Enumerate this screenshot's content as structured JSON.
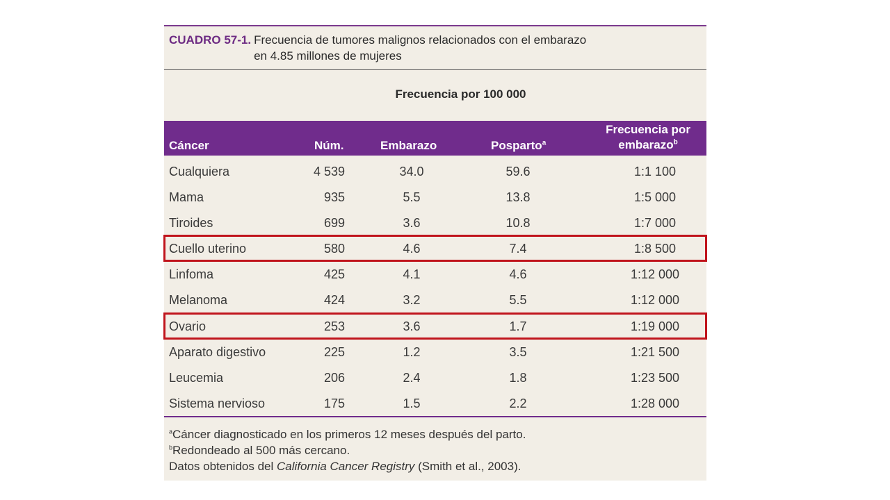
{
  "caption": {
    "label": "CUADRO 57-1.",
    "line1": "Frecuencia de tumores malignos relacionados con el embarazo",
    "line2": "en 4.85 millones de mujeres"
  },
  "group_header": "Frecuencia  por 100 000",
  "columns": {
    "cancer": "Cáncer",
    "num": "Núm.",
    "embarazo": "Embarazo",
    "posparto": "Posparto",
    "posparto_sup": "a",
    "freq_line1": "Frecuencia por",
    "freq_line2": "embarazo",
    "freq_sup": "b"
  },
  "rows": [
    {
      "cancer": "Cualquiera",
      "num": "4 539",
      "embarazo": "34.0",
      "posparto": "59.6",
      "freq": "1:1 100"
    },
    {
      "cancer": "Mama",
      "num": "935",
      "embarazo": "5.5",
      "posparto": "13.8",
      "freq": "1:5 000"
    },
    {
      "cancer": "Tiroides",
      "num": "699",
      "embarazo": "3.6",
      "posparto": "10.8",
      "freq": "1:7 000"
    },
    {
      "cancer": "Cuello uterino",
      "num": "580",
      "embarazo": "4.6",
      "posparto": "7.4",
      "freq": "1:8 500",
      "highlighted": true
    },
    {
      "cancer": "Linfoma",
      "num": "425",
      "embarazo": "4.1",
      "posparto": "4.6",
      "freq": "1:12 000"
    },
    {
      "cancer": "Melanoma",
      "num": "424",
      "embarazo": "3.2",
      "posparto": "5.5",
      "freq": "1:12 000"
    },
    {
      "cancer": "Ovario",
      "num": "253",
      "embarazo": "3.6",
      "posparto": "1.7",
      "freq": "1:19 000",
      "highlighted": true
    },
    {
      "cancer": "Aparato digestivo",
      "num": "225",
      "embarazo": "1.2",
      "posparto": "3.5",
      "freq": "1:21 500"
    },
    {
      "cancer": "Leucemia",
      "num": "206",
      "embarazo": "2.4",
      "posparto": "1.8",
      "freq": "1:23 500"
    },
    {
      "cancer": "Sistema nervioso",
      "num": "175",
      "embarazo": "1.5",
      "posparto": "2.2",
      "freq": "1:28 000"
    }
  ],
  "notes": {
    "a_sup": "a",
    "a_text": "Cáncer diagnosticado en los primeros 12 meses después del parto.",
    "b_sup": "b",
    "b_text": "Redondeado al 500 más cercano.",
    "source_prefix": "Datos obtenidos del ",
    "source_italic": "California Cancer Registry",
    "source_suffix": " (Smith et al., 2003)."
  },
  "colors": {
    "accent": "#702c8c",
    "highlight": "#c0141c",
    "background": "#f2eee6"
  }
}
